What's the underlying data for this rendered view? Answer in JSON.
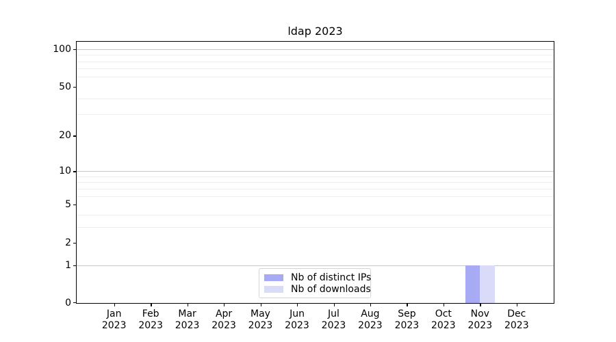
{
  "chart_data": {
    "type": "bar",
    "title": "ldap 2023",
    "categories": [
      "Jan 2023",
      "Feb 2023",
      "Mar 2023",
      "Apr 2023",
      "May 2023",
      "Jun 2023",
      "Jul 2023",
      "Aug 2023",
      "Sep 2023",
      "Oct 2023",
      "Nov 2023",
      "Dec 2023"
    ],
    "series": [
      {
        "name": "Nb of distinct IPs",
        "color": "#a9aaf4",
        "values": [
          0,
          0,
          0,
          0,
          0,
          0,
          0,
          0,
          0,
          0,
          1,
          0
        ]
      },
      {
        "name": "Nb of downloads",
        "color": "#d9dbf9",
        "values": [
          0,
          0,
          0,
          0,
          0,
          0,
          0,
          0,
          0,
          0,
          1,
          0
        ]
      }
    ],
    "yscale": "symlog",
    "ylim": [
      0,
      116
    ],
    "ytick_values": [
      0,
      1,
      2,
      5,
      10,
      20,
      50,
      100
    ],
    "ytick_labels": [
      "0",
      "1",
      "2",
      "5",
      "10",
      "20",
      "50",
      "100"
    ],
    "major_gridline_values": [
      1,
      10,
      100
    ],
    "minor_gridline_values": [
      3,
      4,
      6,
      7,
      8,
      9,
      30,
      40,
      60,
      70,
      80,
      90
    ],
    "grid": true,
    "legend_position": "lower center"
  },
  "colors": {
    "background": "#ffffff",
    "axis": "#000000",
    "major_grid": "#c6c6c6",
    "minor_grid": "#efefef",
    "legend_border": "#d4d4d4"
  }
}
